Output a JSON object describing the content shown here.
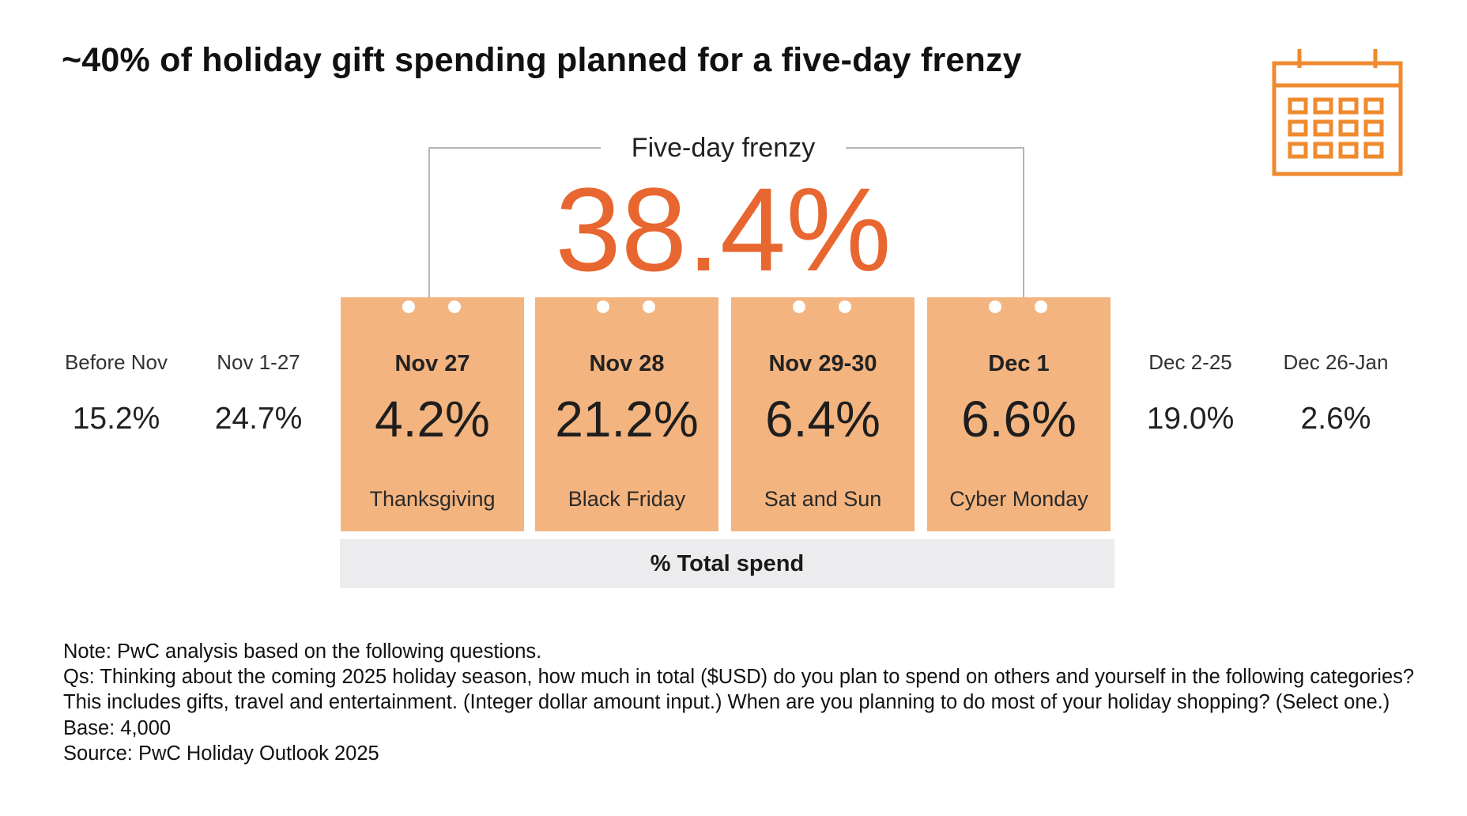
{
  "title": "~40% of holiday gift spending planned for a five-day frenzy",
  "frenzy": {
    "label": "Five-day frenzy",
    "value": "38.4%"
  },
  "colors": {
    "accent": "#e8662f",
    "card": "#f4b47f",
    "bar": "#ececee"
  },
  "icons": {
    "calendar": "calendar-icon"
  },
  "footer_label": "% Total spend",
  "notes": [
    "Note: PwC analysis based on the following questions.",
    "Qs: Thinking about the coming 2025 holiday season, how much in total ($USD) do you plan to spend on others and yourself in the following categories? This includes gifts, travel and entertainment. (Integer dollar amount input.) When are you planning to do most of your holiday shopping? (Select one.)",
    "Base: 4,000",
    "Source: PwC Holiday Outlook 2025"
  ],
  "chart_data": {
    "type": "table",
    "title": "~40% of holiday gift spending planned for a five-day frenzy",
    "metric": "% Total spend",
    "unit": "%",
    "periods": [
      {
        "label": "Before Nov",
        "value": "15.2%",
        "frenzy": false,
        "event": ""
      },
      {
        "label": "Nov 1-27",
        "value": "24.7%",
        "frenzy": false,
        "event": ""
      },
      {
        "label": "Nov 27",
        "value": "4.2%",
        "frenzy": true,
        "event": "Thanksgiving"
      },
      {
        "label": "Nov 28",
        "value": "21.2%",
        "frenzy": true,
        "event": "Black Friday"
      },
      {
        "label": "Nov 29-30",
        "value": "6.4%",
        "frenzy": true,
        "event": "Sat and Sun"
      },
      {
        "label": "Dec 1",
        "value": "6.6%",
        "frenzy": true,
        "event": "Cyber Monday"
      },
      {
        "label": "Dec 2-25",
        "value": "19.0%",
        "frenzy": false,
        "event": ""
      },
      {
        "label": "Dec 26-Jan",
        "value": "2.6%",
        "frenzy": false,
        "event": ""
      }
    ],
    "frenzy_total": "38.4%"
  }
}
